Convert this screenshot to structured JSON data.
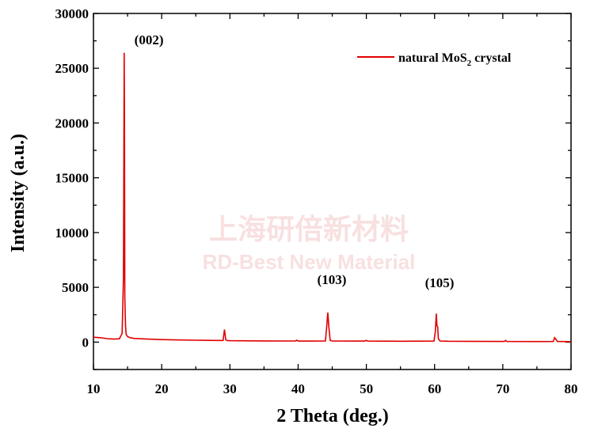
{
  "chart_data": {
    "type": "line",
    "xlabel": "2 Theta (deg.)",
    "ylabel": "Intensity (a.u.)",
    "xlim": [
      10,
      80
    ],
    "ylim": [
      -2500,
      30000
    ],
    "xticks": [
      10,
      20,
      30,
      40,
      50,
      60,
      70,
      80
    ],
    "yticks": [
      0,
      5000,
      10000,
      15000,
      20000,
      25000,
      30000
    ],
    "xtick_labels": [
      "10",
      "20",
      "30",
      "40",
      "50",
      "60",
      "70",
      "80"
    ],
    "ytick_labels": [
      "0",
      "5000",
      "10000",
      "15000",
      "20000",
      "25000",
      "30000"
    ],
    "grid": false,
    "legend_position": "top-right",
    "legend": {
      "text": "natural MoS",
      "subscript": "2",
      "suffix": " crystal"
    },
    "series": [
      {
        "name": "natural MoS2 crystal",
        "color": "#e00000",
        "x": [
          10,
          11,
          12,
          13,
          13.8,
          14.2,
          14.4,
          14.5,
          14.55,
          14.6,
          14.7,
          14.8,
          15,
          15.5,
          16,
          18,
          20,
          22,
          25,
          28,
          29.0,
          29.2,
          29.4,
          29.6,
          30,
          35,
          39.6,
          39.8,
          40.0,
          42,
          44.0,
          44.2,
          44.35,
          44.5,
          44.7,
          45,
          48,
          49.8,
          50.0,
          50.2,
          55,
          59.9,
          60.1,
          60.25,
          60.35,
          60.45,
          60.55,
          60.8,
          62,
          65,
          70.2,
          70.4,
          70.6,
          75,
          77.4,
          77.6,
          77.8,
          78.0,
          80
        ],
        "y": [
          450,
          400,
          320,
          270,
          300,
          800,
          6000,
          26400,
          20000,
          4000,
          1500,
          700,
          500,
          380,
          330,
          270,
          230,
          200,
          170,
          150,
          150,
          1150,
          200,
          140,
          130,
          110,
          100,
          170,
          95,
          90,
          100,
          1500,
          2700,
          1400,
          150,
          100,
          90,
          90,
          160,
          90,
          80,
          90,
          900,
          2600,
          1500,
          1400,
          300,
          100,
          80,
          70,
          60,
          150,
          60,
          50,
          60,
          400,
          250,
          60,
          40
        ]
      }
    ],
    "annotations": [
      {
        "text": "(002)",
        "x": 16.0,
        "y": 27200
      },
      {
        "text": "(103)",
        "x": 42.8,
        "y": 5300
      },
      {
        "text": "(105)",
        "x": 58.6,
        "y": 5000
      }
    ]
  },
  "watermark": {
    "line1": "上海研倍新材料",
    "line2": "RD-Best New Material"
  }
}
